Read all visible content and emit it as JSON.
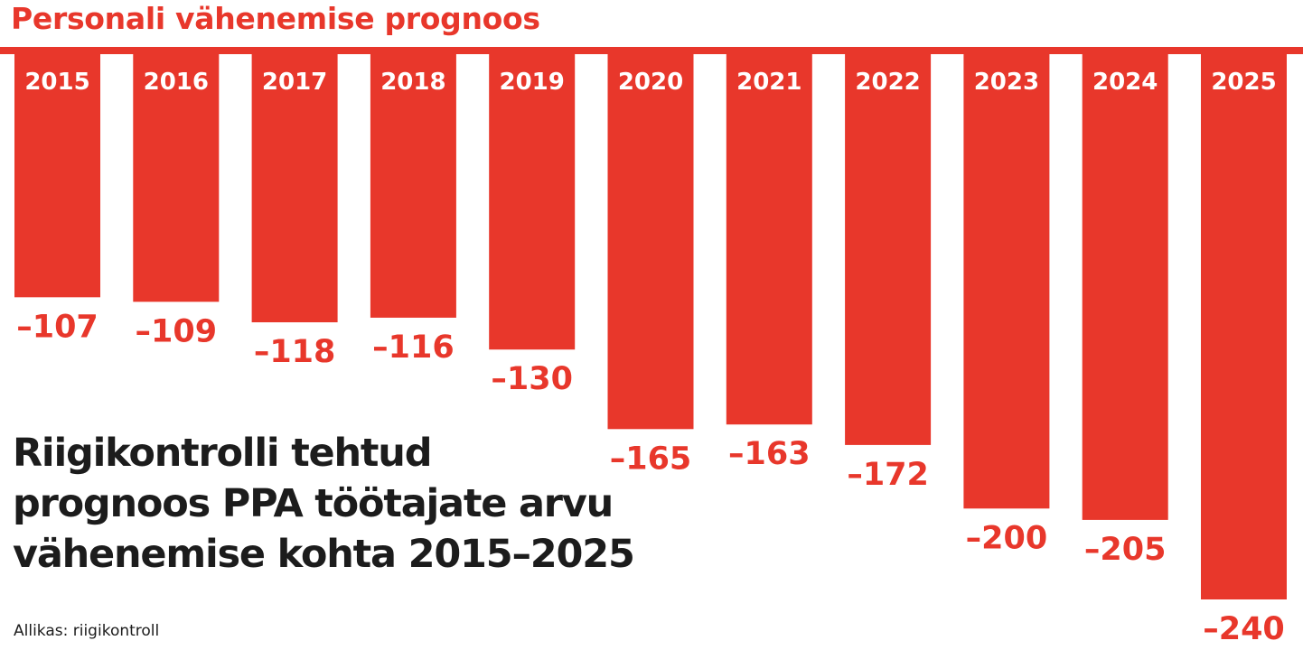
{
  "colors": {
    "accent": "#e8372b",
    "text": "#1c1c1c",
    "background": "#ffffff"
  },
  "header": {
    "title": "Personali vähenemise prognoos"
  },
  "description": {
    "lines": [
      "Riigikontrolli tehtud",
      "prognoos PPA töötajate arvu",
      "vähenemise kohta 2015–2025"
    ]
  },
  "footer": {
    "source": "Allikas: riigikontroll"
  },
  "chart_data": {
    "type": "bar",
    "orientation": "downward",
    "categories": [
      "2015",
      "2016",
      "2017",
      "2018",
      "2019",
      "2020",
      "2021",
      "2022",
      "2023",
      "2024",
      "2025"
    ],
    "values": [
      -107,
      -109,
      -118,
      -116,
      -130,
      -165,
      -163,
      -172,
      -200,
      -205,
      -240
    ],
    "value_labels": [
      "–107",
      "–109",
      "–118",
      "–116",
      "–130",
      "–165",
      "–163",
      "–172",
      "–200",
      "–205",
      "–240"
    ],
    "ylim": [
      -240,
      0
    ],
    "grid": false,
    "legend": "none"
  }
}
